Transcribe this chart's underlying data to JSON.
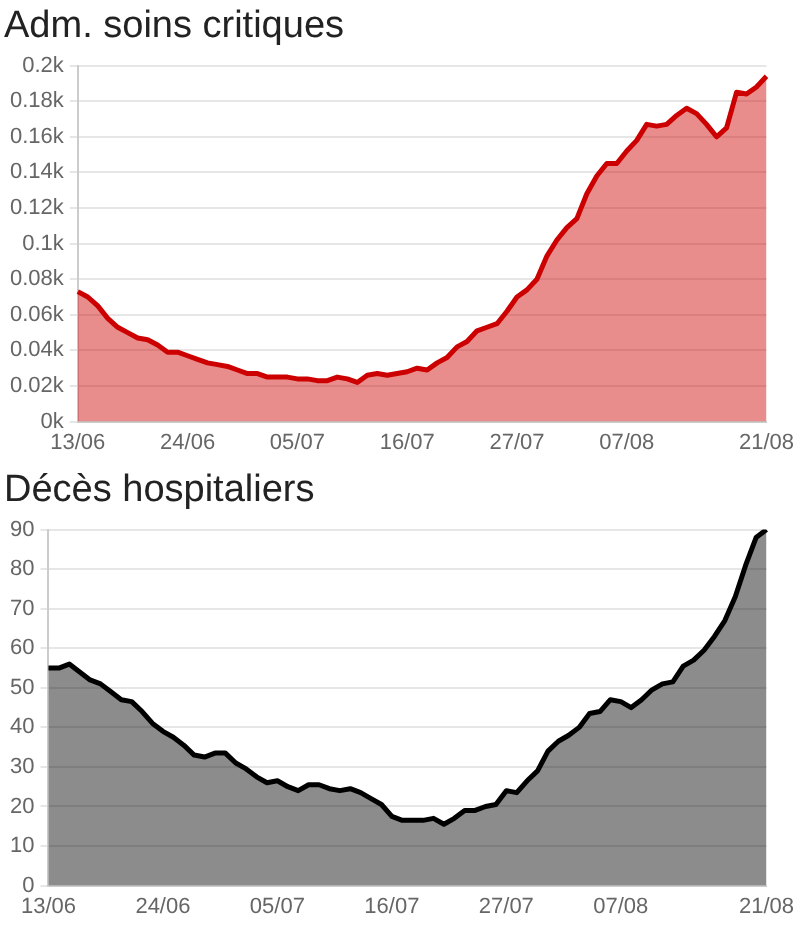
{
  "chart_data": [
    {
      "type": "area",
      "title": "Adm. soins critiques",
      "categories": [
        "13/06",
        null,
        null,
        null,
        null,
        null,
        null,
        null,
        null,
        null,
        null,
        "24/06",
        null,
        null,
        null,
        null,
        null,
        null,
        null,
        null,
        null,
        null,
        "05/07",
        null,
        null,
        null,
        null,
        null,
        null,
        null,
        null,
        null,
        null,
        "16/07",
        null,
        null,
        null,
        null,
        null,
        null,
        null,
        null,
        null,
        null,
        "27/07",
        null,
        null,
        null,
        null,
        null,
        null,
        null,
        null,
        null,
        null,
        "07/08",
        null,
        null,
        null,
        null,
        null,
        null,
        null,
        null,
        null,
        null,
        null,
        null,
        null,
        "21/08"
      ],
      "series": [
        {
          "color": "#cc0000",
          "values": [
            0.073,
            0.07,
            0.065,
            0.058,
            0.053,
            0.05,
            0.047,
            0.046,
            0.043,
            0.039,
            0.039,
            0.037,
            0.035,
            0.033,
            0.032,
            0.031,
            0.029,
            0.027,
            0.027,
            0.025,
            0.025,
            0.025,
            0.024,
            0.024,
            0.023,
            0.023,
            0.025,
            0.024,
            0.022,
            0.026,
            0.027,
            0.026,
            0.027,
            0.028,
            0.03,
            0.029,
            0.033,
            0.036,
            0.042,
            0.045,
            0.051,
            0.053,
            0.055,
            0.062,
            0.07,
            0.074,
            0.08,
            0.093,
            0.102,
            0.109,
            0.114,
            0.128,
            0.138,
            0.145,
            0.145,
            0.152,
            0.158,
            0.167,
            0.166,
            0.167,
            0.172,
            0.176,
            0.173,
            0.167,
            0.16,
            0.165,
            0.185,
            0.184,
            0.188,
            0.194
          ]
        }
      ],
      "ylim": [
        0,
        0.2
      ],
      "yticks": [
        {
          "value": 0,
          "label": "0k"
        },
        {
          "value": 0.02,
          "label": "0.02k"
        },
        {
          "value": 0.04,
          "label": "0.04k"
        },
        {
          "value": 0.06,
          "label": "0.06k"
        },
        {
          "value": 0.08,
          "label": "0.08k"
        },
        {
          "value": 0.1,
          "label": "0.1k"
        },
        {
          "value": 0.12,
          "label": "0.12k"
        },
        {
          "value": 0.14,
          "label": "0.14k"
        },
        {
          "value": 0.16,
          "label": "0.16k"
        },
        {
          "value": 0.18,
          "label": "0.18k"
        },
        {
          "value": 0.2,
          "label": "0.2k"
        }
      ],
      "grid": "y"
    },
    {
      "type": "area",
      "title": "Décès hospitaliers",
      "categories": [
        "13/06",
        null,
        null,
        null,
        null,
        null,
        null,
        null,
        null,
        null,
        null,
        "24/06",
        null,
        null,
        null,
        null,
        null,
        null,
        null,
        null,
        null,
        null,
        "05/07",
        null,
        null,
        null,
        null,
        null,
        null,
        null,
        null,
        null,
        null,
        "16/07",
        null,
        null,
        null,
        null,
        null,
        null,
        null,
        null,
        null,
        null,
        "27/07",
        null,
        null,
        null,
        null,
        null,
        null,
        null,
        null,
        null,
        null,
        "07/08",
        null,
        null,
        null,
        null,
        null,
        null,
        null,
        null,
        null,
        null,
        null,
        null,
        null,
        "21/08"
      ],
      "series": [
        {
          "color": "#000000",
          "values": [
            55,
            55,
            56,
            54,
            52,
            51,
            49,
            47,
            46.5,
            44,
            41,
            39,
            37.5,
            35.5,
            33,
            32.5,
            33.5,
            33.5,
            31,
            29.5,
            27.5,
            26,
            26.5,
            25,
            24,
            25.5,
            25.5,
            24.5,
            24,
            24.5,
            23.5,
            22,
            20.5,
            17.5,
            16.5,
            16.5,
            16.5,
            17,
            15.5,
            17,
            19,
            19,
            20,
            20.5,
            24,
            23.5,
            26.5,
            29,
            34,
            36.5,
            38,
            40,
            43.5,
            44,
            47,
            46.5,
            45,
            47,
            49.5,
            51,
            51.5,
            55.5,
            57,
            59.5,
            63,
            67,
            73,
            81,
            88,
            90
          ]
        }
      ],
      "ylim": [
        0,
        90
      ],
      "yticks": [
        0,
        10,
        20,
        30,
        40,
        50,
        60,
        70,
        80,
        90
      ],
      "grid": "y"
    }
  ]
}
